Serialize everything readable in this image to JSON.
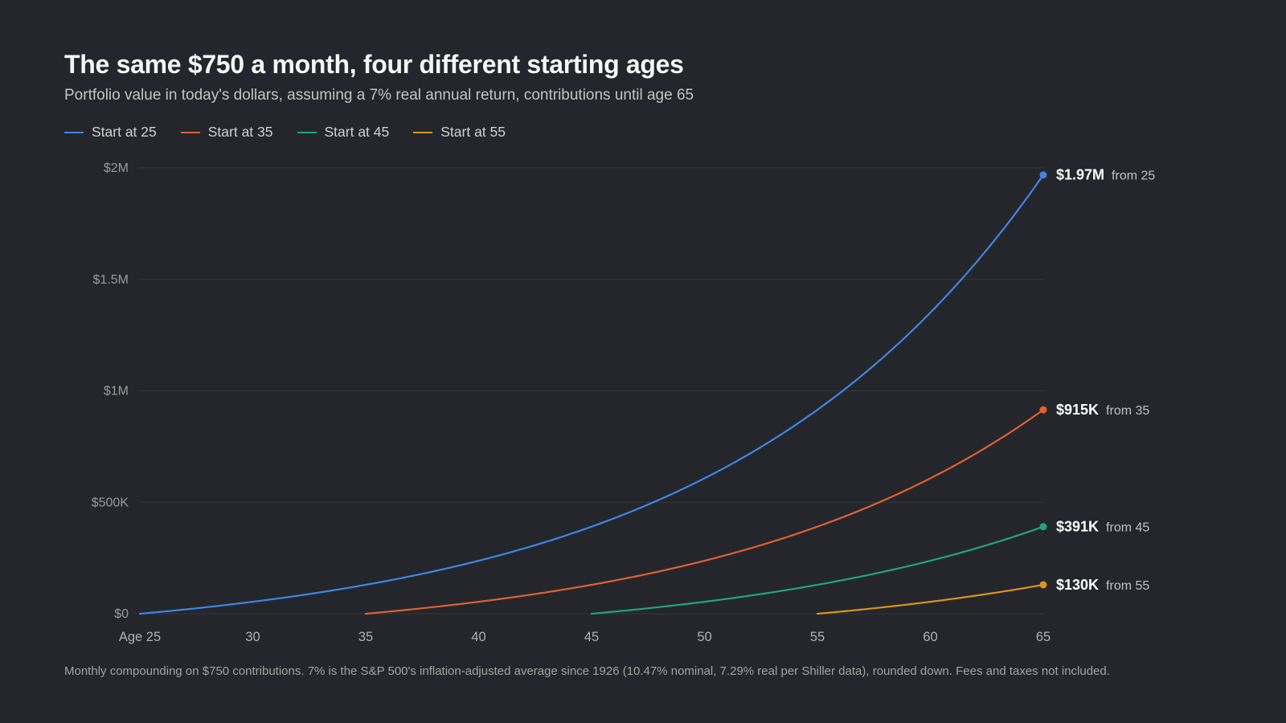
{
  "header": {
    "title": "The same $750 a month, four different starting ages",
    "subtitle": "Portfolio value in today's dollars, assuming a 7% real annual return, contributions until age 65"
  },
  "footnote": "Monthly compounding on $750 contributions. 7% is the S&P 500's inflation-adjusted average since 1926 (10.47% nominal, 7.29% real per Shiller data), rounded down. Fees and taxes not included.",
  "chart_data": {
    "type": "line",
    "title": "The same $750 a month, four different starting ages",
    "xlabel": "",
    "ylabel": "",
    "xlim": [
      25,
      65
    ],
    "ylim": [
      0,
      2000000
    ],
    "grid": true,
    "legend": "top-left",
    "x_ticks": [
      {
        "value": 25,
        "label": "Age 25"
      },
      {
        "value": 30,
        "label": "30"
      },
      {
        "value": 35,
        "label": "35"
      },
      {
        "value": 40,
        "label": "40"
      },
      {
        "value": 45,
        "label": "45"
      },
      {
        "value": 50,
        "label": "50"
      },
      {
        "value": 55,
        "label": "55"
      },
      {
        "value": 60,
        "label": "60"
      },
      {
        "value": 65,
        "label": "65"
      }
    ],
    "y_ticks": [
      {
        "value": 0,
        "label": "$0"
      },
      {
        "value": 500000,
        "label": "$500K"
      },
      {
        "value": 1000000,
        "label": "$1M"
      },
      {
        "value": 1500000,
        "label": "$1.5M"
      },
      {
        "value": 2000000,
        "label": "$2M"
      }
    ],
    "monthly_contribution": 750,
    "annual_return": 0.07,
    "series": [
      {
        "name": "Start at 25",
        "start_age": 25,
        "color": "#3d86e6",
        "points": [
          [
            25,
            0
          ],
          [
            30,
            54000
          ],
          [
            35,
            130000
          ],
          [
            40,
            240000
          ],
          [
            45,
            391000
          ],
          [
            50,
            605000
          ],
          [
            55,
            915000
          ],
          [
            60,
            1350000
          ],
          [
            65,
            1970000
          ]
        ],
        "end_value": "$1.97M",
        "end_label": "from 25"
      },
      {
        "name": "Start at 35",
        "start_age": 35,
        "color": "#e0612f",
        "points": [
          [
            35,
            0
          ],
          [
            40,
            54000
          ],
          [
            45,
            130000
          ],
          [
            50,
            240000
          ],
          [
            55,
            391000
          ],
          [
            60,
            605000
          ],
          [
            65,
            915000
          ]
        ],
        "end_value": "$915K",
        "end_label": "from 35"
      },
      {
        "name": "Start at 45",
        "start_age": 45,
        "color": "#1fa67a",
        "points": [
          [
            45,
            0
          ],
          [
            50,
            54000
          ],
          [
            55,
            130000
          ],
          [
            60,
            240000
          ],
          [
            65,
            391000
          ]
        ],
        "end_value": "$391K",
        "end_label": "from 45"
      },
      {
        "name": "Start at 55",
        "start_age": 55,
        "color": "#d9951b",
        "points": [
          [
            55,
            0
          ],
          [
            60,
            54000
          ],
          [
            65,
            130000
          ]
        ],
        "end_value": "$130K",
        "end_label": "from 55"
      }
    ]
  }
}
